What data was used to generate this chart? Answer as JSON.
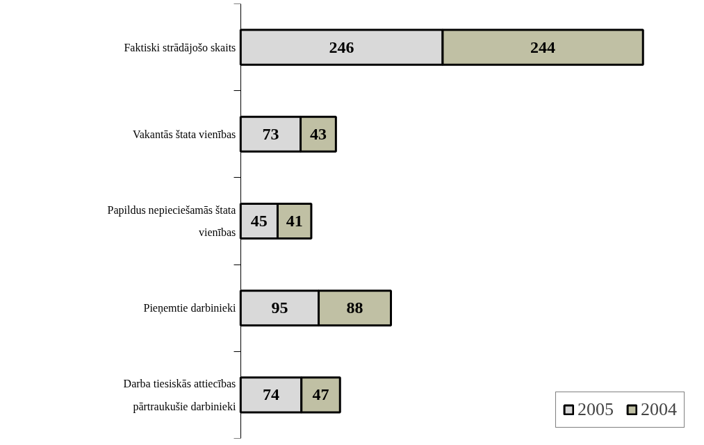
{
  "chart_data": {
    "type": "bar",
    "orientation": "horizontal",
    "stacked": true,
    "data_labels": true,
    "legend": "bottom right",
    "grid": false,
    "categories": [
      "Faktiski strādājošo skaits",
      "Vakantās štata vienības",
      "Papildus nepieciešamās štata vienības",
      "Pieņemtie darbinieki",
      "Darba tiesiskās attiecības pārtraukušie darbinieki"
    ],
    "series": [
      {
        "name": "2005",
        "color": "#d9d9d9",
        "values": [
          246,
          73,
          45,
          95,
          74
        ]
      },
      {
        "name": "2004",
        "color": "#c0c0a4",
        "values": [
          244,
          43,
          41,
          88,
          47
        ]
      }
    ]
  }
}
